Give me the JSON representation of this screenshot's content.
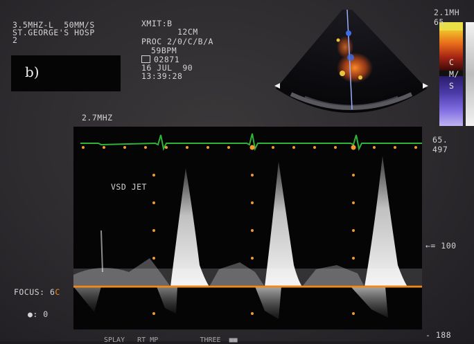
{
  "header": {
    "line1": "3.5MHZ-L  50MM/S",
    "line2": "ST.GEORGE'S HOSP",
    "line3": "2"
  },
  "settings": {
    "xmit": "XMIT:B",
    "depth": "12CM",
    "proc": "PROC 2/0/C/B/A",
    "bpm": "59BPM",
    "id": "02871",
    "date": "16 JUL  90",
    "time": "13:39:28"
  },
  "panel_label": "b)",
  "doppler": {
    "frequency": "2.7MHZ",
    "annotation": "VSD JET",
    "focus_label": "FOCUS: 6",
    "focus_marker": "C",
    "gain_label": "●: 0"
  },
  "scale": {
    "top_partial": "2.1MH",
    "color_top": "65.",
    "color_unit": "CM/S",
    "color_bottom": "65.",
    "vel_top": "497",
    "vel_mid": "←= 100",
    "vel_bottom": "- 188"
  },
  "bottom_partial": "SPLAY   RT MP          THREE  ■■  ",
  "colors": {
    "ecg": "#2fb43a",
    "baseline": "#f08a20",
    "marker": "#f59a30",
    "panel": "#050506"
  },
  "icons": {
    "id_icon": "box-icon",
    "ecg": "ecg-trace"
  }
}
